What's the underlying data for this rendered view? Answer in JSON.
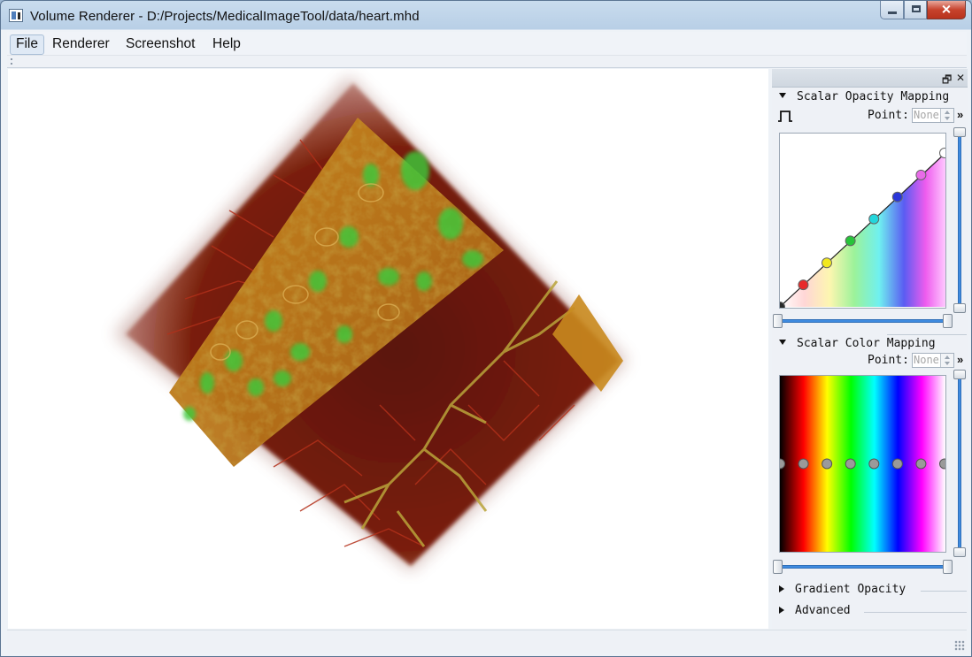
{
  "window": {
    "title": "Volume Renderer - D:/Projects/MedicalImageTool/data/heart.mhd",
    "minimize_glyph": "minimize-icon",
    "maximize_glyph": "maximize-icon",
    "close_glyph": "✕"
  },
  "menubar": {
    "items": [
      {
        "label": "File",
        "active": true
      },
      {
        "label": "Renderer",
        "active": false
      },
      {
        "label": "Screenshot",
        "active": false
      },
      {
        "label": "Help",
        "active": false
      }
    ]
  },
  "dock": {
    "float_glyph": "🗗",
    "close_glyph": "✕",
    "opacity_section": {
      "title": "Scalar Opacity Mapping",
      "point_label": "Point:",
      "point_value": "None",
      "more": "»",
      "points": [
        {
          "x": 0.0,
          "y": 0.0,
          "color": "#2a2a2a"
        },
        {
          "x": 0.142,
          "y": 0.143,
          "color": "#e82a2a"
        },
        {
          "x": 0.285,
          "y": 0.286,
          "color": "#f2e81e"
        },
        {
          "x": 0.428,
          "y": 0.429,
          "color": "#27c43a"
        },
        {
          "x": 0.571,
          "y": 0.571,
          "color": "#24d6dc"
        },
        {
          "x": 0.714,
          "y": 0.714,
          "color": "#2a36d8"
        },
        {
          "x": 0.857,
          "y": 0.857,
          "color": "#e86be8"
        },
        {
          "x": 1.0,
          "y": 1.0,
          "color": "#ffffff"
        }
      ]
    },
    "color_section": {
      "title": "Scalar Color Mapping",
      "point_label": "Point:",
      "point_value": "None",
      "more": "»",
      "stops": [
        "#000000",
        "#ff0000",
        "#ffff00",
        "#00ff00",
        "#00ffff",
        "#0000ff",
        "#ff00ff",
        "#ffffff"
      ]
    },
    "gradient_section": {
      "title": "Gradient Opacity"
    },
    "advanced_section": {
      "title": "Advanced"
    }
  },
  "viewport": {
    "content": "volume-rendering-icon"
  }
}
